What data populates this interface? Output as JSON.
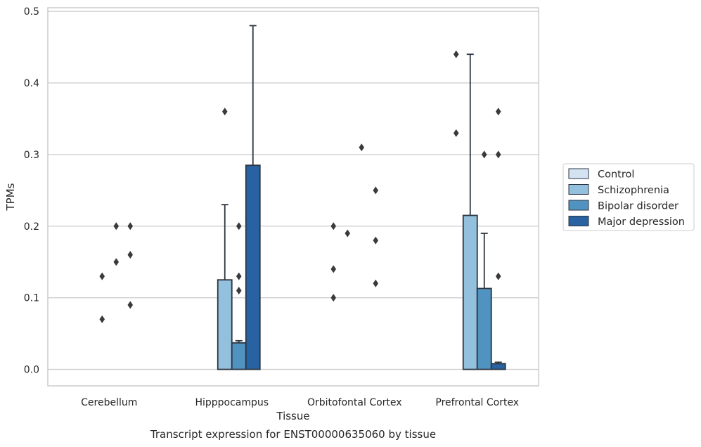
{
  "chart_data": {
    "type": "bar",
    "subtype": "grouped bar with error bars and outliers",
    "caption": "Transcript expression for ENST00000635060 by tissue",
    "xlabel": "Tissue",
    "ylabel": "TPMs",
    "ylim": [
      -0.023,
      0.505
    ],
    "yticks": [
      "0.0",
      "0.1",
      "0.2",
      "0.3",
      "0.4",
      "0.5"
    ],
    "grid": "horizontal",
    "legend_position": "right",
    "categories": [
      "Cerebellum",
      "Hipppocampus",
      "Orbitofontal Cortex",
      "Prefrontal Cortex"
    ],
    "series": [
      {
        "name": "Control",
        "color": "#d4e3f1",
        "values": [
          0.0,
          0.0,
          0.0,
          0.0
        ],
        "error_upper": [
          null,
          null,
          null,
          null
        ],
        "outliers": [
          [],
          [],
          [
            0.1,
            0.14,
            0.2
          ],
          [
            0.44,
            0.33
          ]
        ]
      },
      {
        "name": "Schizophrenia",
        "color": "#93c0dc",
        "values": [
          0.0,
          0.125,
          0.0,
          0.215
        ],
        "error_upper": [
          null,
          0.23,
          null,
          0.44
        ],
        "outliers": [
          [
            0.13,
            0.07
          ],
          [
            0.36
          ],
          [
            0.19
          ],
          []
        ]
      },
      {
        "name": "Bipolar disorder",
        "color": "#5193c0",
        "values": [
          0.0,
          0.037,
          0.0,
          0.113
        ],
        "error_upper": [
          null,
          0.04,
          null,
          0.19
        ],
        "outliers": [
          [
            0.2,
            0.15
          ],
          [
            0.2,
            0.13,
            0.11
          ],
          [
            0.31
          ],
          [
            0.3
          ]
        ]
      },
      {
        "name": "Major depression",
        "color": "#2862a2",
        "values": [
          0.0,
          0.285,
          0.0,
          0.008
        ],
        "error_upper": [
          null,
          0.48,
          null,
          0.01
        ],
        "outliers": [
          [
            0.2,
            0.16,
            0.09
          ],
          [],
          [
            0.25,
            0.18,
            0.12
          ],
          [
            0.36,
            0.3,
            0.13
          ]
        ]
      }
    ]
  }
}
